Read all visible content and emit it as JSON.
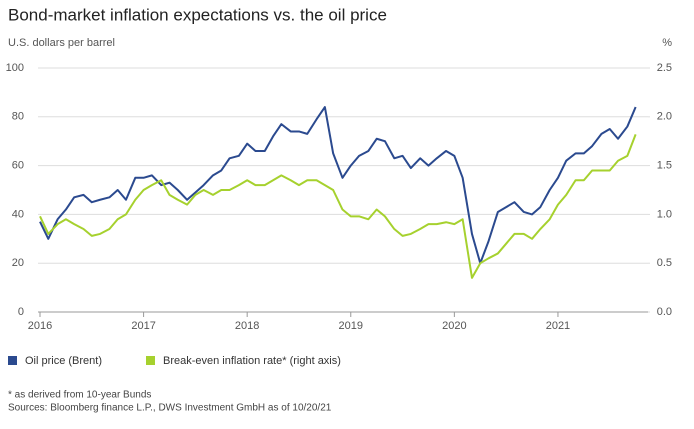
{
  "chart_data": {
    "type": "line",
    "title": "Bond-market inflation expectations vs. the oil price",
    "y_label": "U.S. dollars per barrel",
    "y2_label": "%",
    "x": [
      2016.0,
      2016.08,
      2016.17,
      2016.25,
      2016.33,
      2016.42,
      2016.5,
      2016.58,
      2016.67,
      2016.75,
      2016.83,
      2016.92,
      2017.0,
      2017.08,
      2017.17,
      2017.25,
      2017.33,
      2017.42,
      2017.5,
      2017.58,
      2017.67,
      2017.75,
      2017.83,
      2017.92,
      2018.0,
      2018.08,
      2018.17,
      2018.25,
      2018.33,
      2018.42,
      2018.5,
      2018.58,
      2018.67,
      2018.75,
      2018.83,
      2018.92,
      2019.0,
      2019.08,
      2019.17,
      2019.25,
      2019.33,
      2019.42,
      2019.5,
      2019.58,
      2019.67,
      2019.75,
      2019.83,
      2019.92,
      2020.0,
      2020.08,
      2020.17,
      2020.25,
      2020.33,
      2020.42,
      2020.5,
      2020.58,
      2020.67,
      2020.75,
      2020.83,
      2020.92,
      2021.0,
      2021.08,
      2021.17,
      2021.25,
      2021.33,
      2021.42,
      2021.5,
      2021.58,
      2021.67,
      2021.75
    ],
    "series": [
      {
        "name": "Oil price (Brent)",
        "color": "#2b4a8f",
        "values": [
          37,
          30,
          38,
          42,
          47,
          48,
          45,
          46,
          47,
          50,
          46,
          55,
          55,
          56,
          52,
          53,
          50,
          46,
          49,
          52,
          56,
          58,
          63,
          64,
          69,
          66,
          66,
          72,
          77,
          74,
          74,
          73,
          79,
          84,
          65,
          55,
          60,
          64,
          66,
          71,
          70,
          63,
          64,
          59,
          63,
          60,
          63,
          66,
          64,
          55,
          32,
          20,
          29,
          41,
          43,
          45,
          41,
          40,
          43,
          50,
          55,
          62,
          65,
          65,
          68,
          73,
          75,
          71,
          76,
          84
        ]
      },
      {
        "name": "Break-even inflation rate* (right axis)",
        "color": "#a6d12e",
        "axis": "y2",
        "values": [
          0.98,
          0.8,
          0.9,
          0.95,
          0.9,
          0.85,
          0.78,
          0.8,
          0.85,
          0.95,
          1.0,
          1.15,
          1.25,
          1.3,
          1.35,
          1.2,
          1.15,
          1.1,
          1.2,
          1.25,
          1.2,
          1.25,
          1.25,
          1.3,
          1.35,
          1.3,
          1.3,
          1.35,
          1.4,
          1.35,
          1.3,
          1.35,
          1.35,
          1.3,
          1.25,
          1.05,
          0.98,
          0.98,
          0.95,
          1.05,
          0.98,
          0.85,
          0.78,
          0.8,
          0.85,
          0.9,
          0.9,
          0.92,
          0.9,
          0.95,
          0.35,
          0.5,
          0.55,
          0.6,
          0.7,
          0.8,
          0.8,
          0.75,
          0.85,
          0.95,
          1.1,
          1.2,
          1.35,
          1.35,
          1.45,
          1.45,
          1.45,
          1.55,
          1.6,
          1.82
        ]
      }
    ],
    "xlim": [
      2016,
      2021.85
    ],
    "xticks": [
      2016,
      2017,
      2018,
      2019,
      2020,
      2021
    ],
    "ylim": [
      0,
      100
    ],
    "yticks": [
      0,
      20,
      40,
      60,
      80,
      100
    ],
    "y2lim": [
      0,
      2.5
    ],
    "y2ticks": [
      {
        "value": 0,
        "label": "0.0"
      },
      0.5,
      {
        "value": 1,
        "label": "1.0"
      },
      1.5,
      {
        "value": 2,
        "label": "2.0"
      },
      2.5
    ],
    "grid": true,
    "footnotes": [
      "* as derived from 10-year Bunds",
      "Sources: Bloomberg finance L.P., DWS Investment GmbH as of 10/20/21"
    ]
  }
}
